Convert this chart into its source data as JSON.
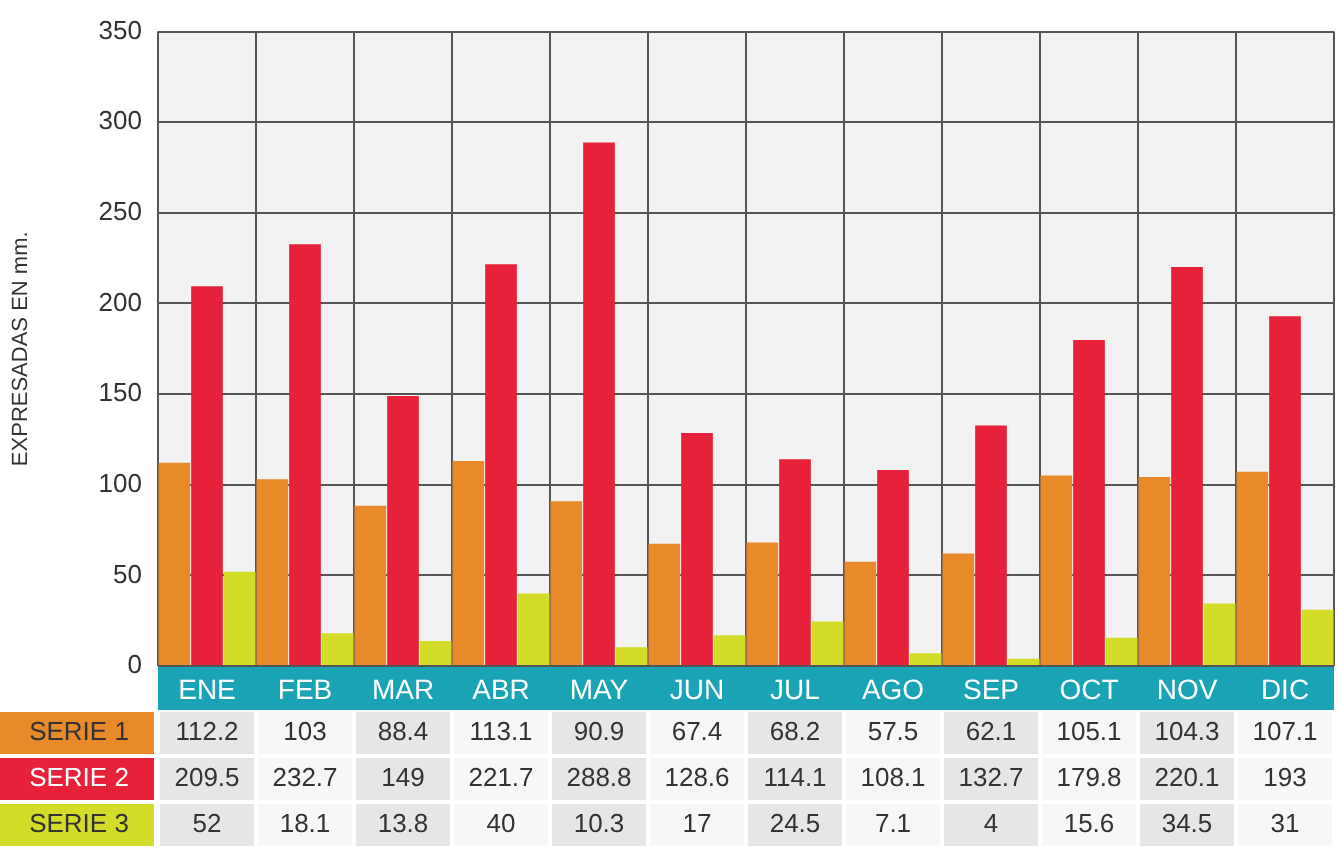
{
  "chart_data": {
    "type": "bar",
    "ylabel": "EXPRESADAS EN mm.",
    "categories": [
      "ENE",
      "FEB",
      "MAR",
      "ABR",
      "MAY",
      "JUN",
      "JUL",
      "AGO",
      "SEP",
      "OCT",
      "NOV",
      "DIC"
    ],
    "series": [
      {
        "name": "SERIE 1",
        "color": "#e8892a",
        "values": [
          112.2,
          103,
          88.4,
          113.1,
          90.9,
          67.4,
          68.2,
          57.5,
          62.1,
          105.1,
          104.3,
          107.1
        ]
      },
      {
        "name": "SERIE 2",
        "color": "#e8213a",
        "values": [
          209.5,
          232.7,
          149,
          221.7,
          288.8,
          128.6,
          114.1,
          108.1,
          132.7,
          179.8,
          220.1,
          193
        ]
      },
      {
        "name": "SERIE 3",
        "color": "#d4dc2a",
        "values": [
          52,
          18.1,
          13.8,
          40,
          10.3,
          17,
          24.5,
          7.1,
          4,
          15.6,
          34.5,
          31
        ]
      }
    ],
    "ylim": [
      0,
      350
    ],
    "yticks": [
      0,
      50,
      100,
      150,
      200,
      250,
      300,
      350
    ],
    "grid": true,
    "legend": false,
    "data_labels": true
  }
}
